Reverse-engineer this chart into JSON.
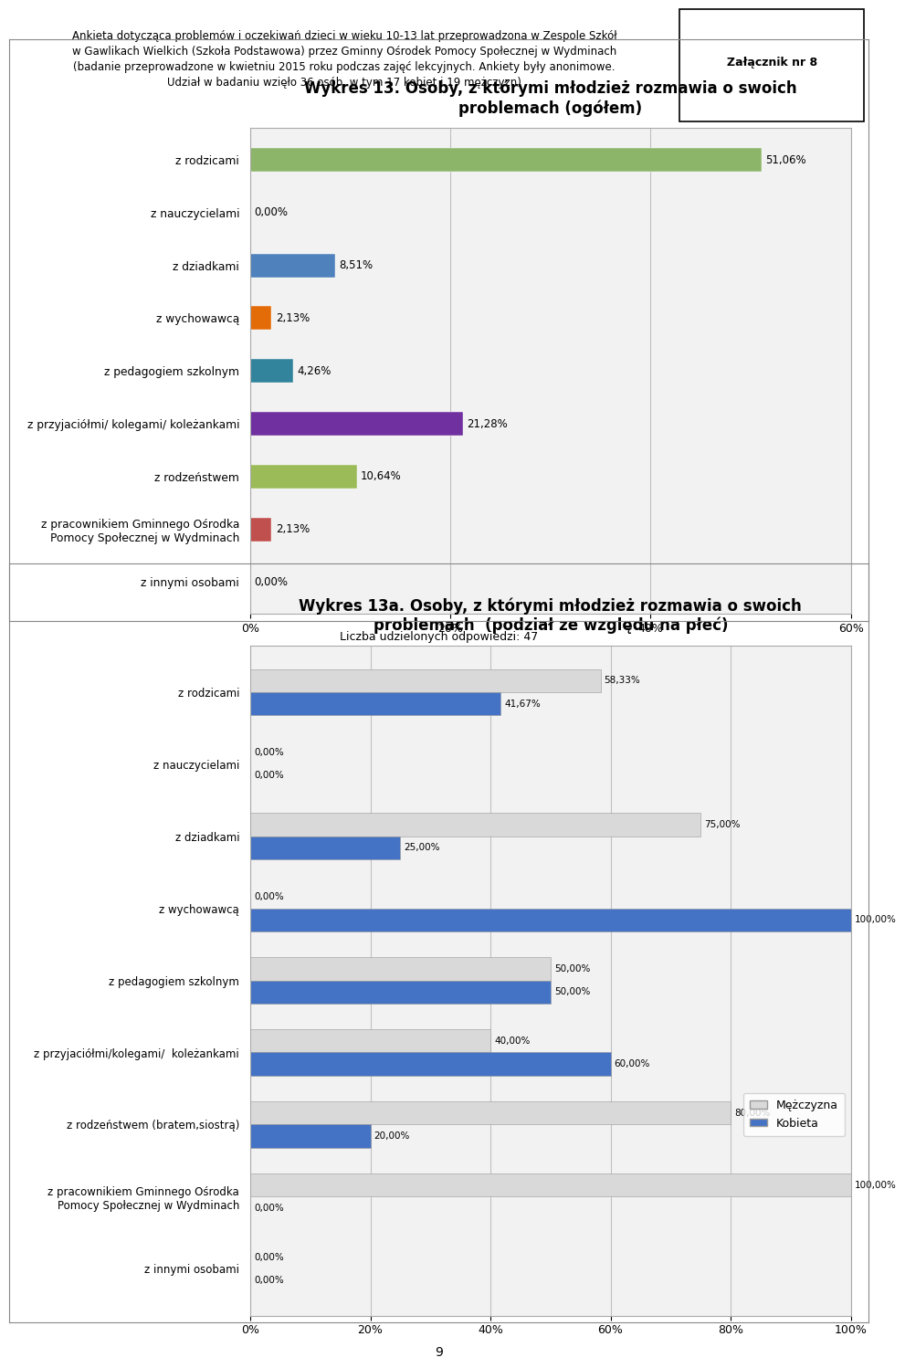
{
  "header_text": "Ankieta dotycząca problemów i oczekiwań dzieci w wieku 10-13 lat przeprowadzona w Zespole Szkół\nw Gawlikach Wielkich (Szkoła Podstawowa) przez Gminny Ośrodek Pomocy Społecznej w Wydminach\n(badanie przeprowadzone w kwietniu 2015 roku podczas zajęć lekcyjnych. Ankiety były anonimowe.\nUdział w badaniu wzięło 36 osób, w tym 17 kobiet i 19 mężczyzn)",
  "annex_text": "Załącznik nr 8",
  "chart1": {
    "title": "Wykres 13. Osoby, z którymi młodzież rozmawia o swoich\nproblemach (ogółem)",
    "categories": [
      "z rodzicami",
      "z nauczycielami",
      "z dziadkami",
      "z wychowawcą",
      "z pedagogiem szkolnym",
      "z przyjaciółmi/ kolegami/ koleżankami",
      "z rodzeństwem",
      "z pracownikiem Gminnego Ośrodka\nPomocy Społecznej w Wydminach",
      "z innymi osobami"
    ],
    "values": [
      51.06,
      0.0,
      8.51,
      2.13,
      4.26,
      21.28,
      10.64,
      2.13,
      0.0
    ],
    "bar_colors": [
      "#8db56a",
      "#c0504d",
      "#4f81bd",
      "#e36c09",
      "#31849b",
      "#7030a0",
      "#9bbb59",
      "#c0504d",
      "#4f81bd"
    ],
    "labels": [
      "51,06%",
      "0,00%",
      "8,51%",
      "2,13%",
      "4,26%",
      "21,28%",
      "10,64%",
      "2,13%",
      "0,00%"
    ],
    "xlim": [
      0,
      60
    ],
    "xticks": [
      0,
      20,
      40,
      60
    ],
    "xticklabels": [
      "0%",
      "20%",
      "40%",
      "60%"
    ],
    "footnote": "Liczba udzielonych odpowiedzi: 47"
  },
  "chart2": {
    "title": "Wykres 13a. Osoby, z którymi młodzież rozmawia o swoich\nproblemach  (podział ze względu na płeć)",
    "categories": [
      "z rodzicami",
      "z nauczycielami",
      "z dziadkami",
      "z wychowawcą",
      "z pedagogiem szkolnym",
      "z przyjaciółmi/kolegami/  koleżankami",
      "z rodzeństwem (bratem,siostrą)",
      "z pracownikiem Gminnego Ośrodka\nPomocy Społecznej w Wydminach",
      "z innymi osobami"
    ],
    "values_men": [
      58.33,
      0.0,
      75.0,
      0.0,
      50.0,
      40.0,
      80.0,
      100.0,
      0.0
    ],
    "values_women": [
      41.67,
      0.0,
      25.0,
      100.0,
      50.0,
      60.0,
      20.0,
      0.0,
      0.0
    ],
    "labels_men": [
      "58,33%",
      "0,00%",
      "75,00%",
      "0,00%",
      "50,00%",
      "40,00%",
      "80,00%",
      "100,00%",
      "0,00%"
    ],
    "labels_women": [
      "41,67%",
      "0,00%",
      "25,00%",
      "100,00%",
      "50,00%",
      "60,00%",
      "20,00%",
      "0,00%",
      "0,00%"
    ],
    "color_men": "#d9d9d9",
    "color_women": "#4472c4",
    "xlim": [
      0,
      100
    ],
    "xticks": [
      0,
      20,
      40,
      60,
      80,
      100
    ],
    "xticklabels": [
      "0%",
      "20%",
      "40%",
      "60%",
      "80%",
      "100%"
    ],
    "legend_men": "Mężczyzna",
    "legend_women": "Kobieta",
    "page_number": "9"
  },
  "bg_color": "#ffffff"
}
